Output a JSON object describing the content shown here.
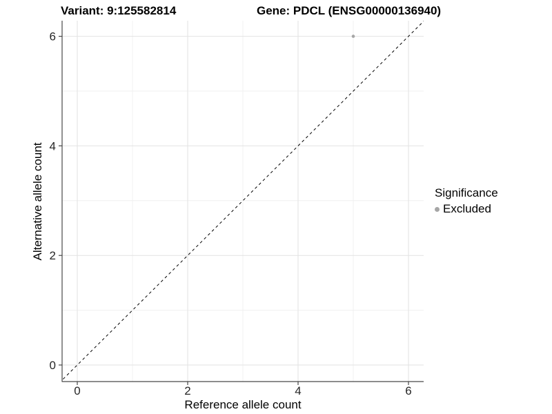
{
  "titles": {
    "variant": "Variant: 9:125582814",
    "gene": "Gene: PDCL (ENSG00000136940)"
  },
  "axes": {
    "x": {
      "label": "Reference allele count"
    },
    "y": {
      "label": "Alternative allele count"
    }
  },
  "legend": {
    "title": "Significance",
    "items": [
      {
        "label": "Excluded",
        "color": "#a6a6a6"
      }
    ]
  },
  "chart_data": {
    "type": "scatter",
    "title": "Variant: 9:125582814   Gene: PDCL (ENSG00000136940)",
    "xlabel": "Reference allele count",
    "ylabel": "Alternative allele count",
    "xlim": [
      -0.3,
      6.3
    ],
    "ylim": [
      -0.3,
      6.3
    ],
    "x_major_ticks": [
      0,
      2,
      4,
      6
    ],
    "x_minor_gridlines": [
      1,
      3,
      5
    ],
    "y_major_ticks": [
      0,
      2,
      4,
      6
    ],
    "y_minor_gridlines": [
      1,
      3,
      5
    ],
    "series": [
      {
        "name": "Excluded",
        "color": "#a6a6a6",
        "points": [
          {
            "x": 5,
            "y": 6
          }
        ]
      }
    ],
    "reference_line": {
      "type": "identity",
      "slope": 1,
      "intercept": 0,
      "style": "dashed",
      "color": "#000000"
    },
    "grid": "on",
    "legend_position": "right",
    "colors": {
      "background": "#ffffff",
      "major_grid": "#e2e2e2",
      "minor_grid": "#f0f0f0",
      "axis_line": "#474747",
      "tick_text": "#262626",
      "point": "#a6a6a6"
    }
  }
}
